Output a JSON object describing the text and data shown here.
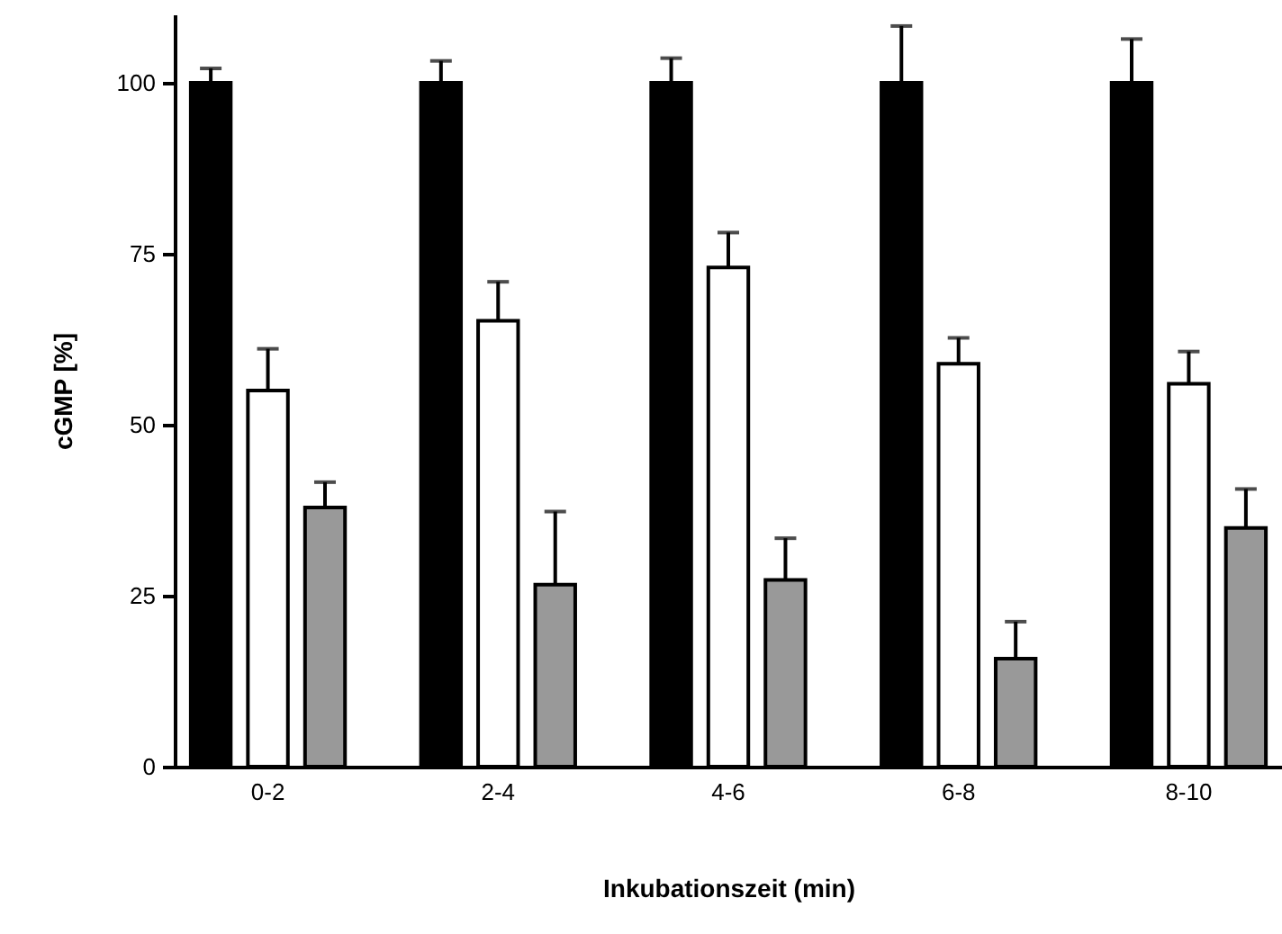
{
  "chart_data": {
    "type": "bar",
    "xlabel": "Inkubationszeit (min)",
    "ylabel": "cGMP [%]",
    "categories": [
      "0-2",
      "2-4",
      "4-6",
      "6-8",
      "8-10"
    ],
    "ylim": [
      0,
      110
    ],
    "yticks": [
      0,
      25,
      50,
      75,
      100
    ],
    "series": [
      {
        "color": "#000000",
        "values": [
          100,
          100,
          100,
          100,
          100
        ],
        "errors": [
          2.1,
          3.2,
          3.6,
          8.3,
          6.4
        ]
      },
      {
        "color": "#ffffff",
        "values": [
          55.0,
          65.2,
          73.0,
          58.9,
          56.0
        ],
        "errors": [
          6.1,
          5.7,
          5.1,
          3.8,
          4.7
        ]
      },
      {
        "color": "#999999",
        "values": [
          37.9,
          26.6,
          27.3,
          15.8,
          34.9
        ],
        "errors": [
          3.7,
          10.7,
          6.1,
          5.4,
          5.7
        ]
      }
    ]
  }
}
